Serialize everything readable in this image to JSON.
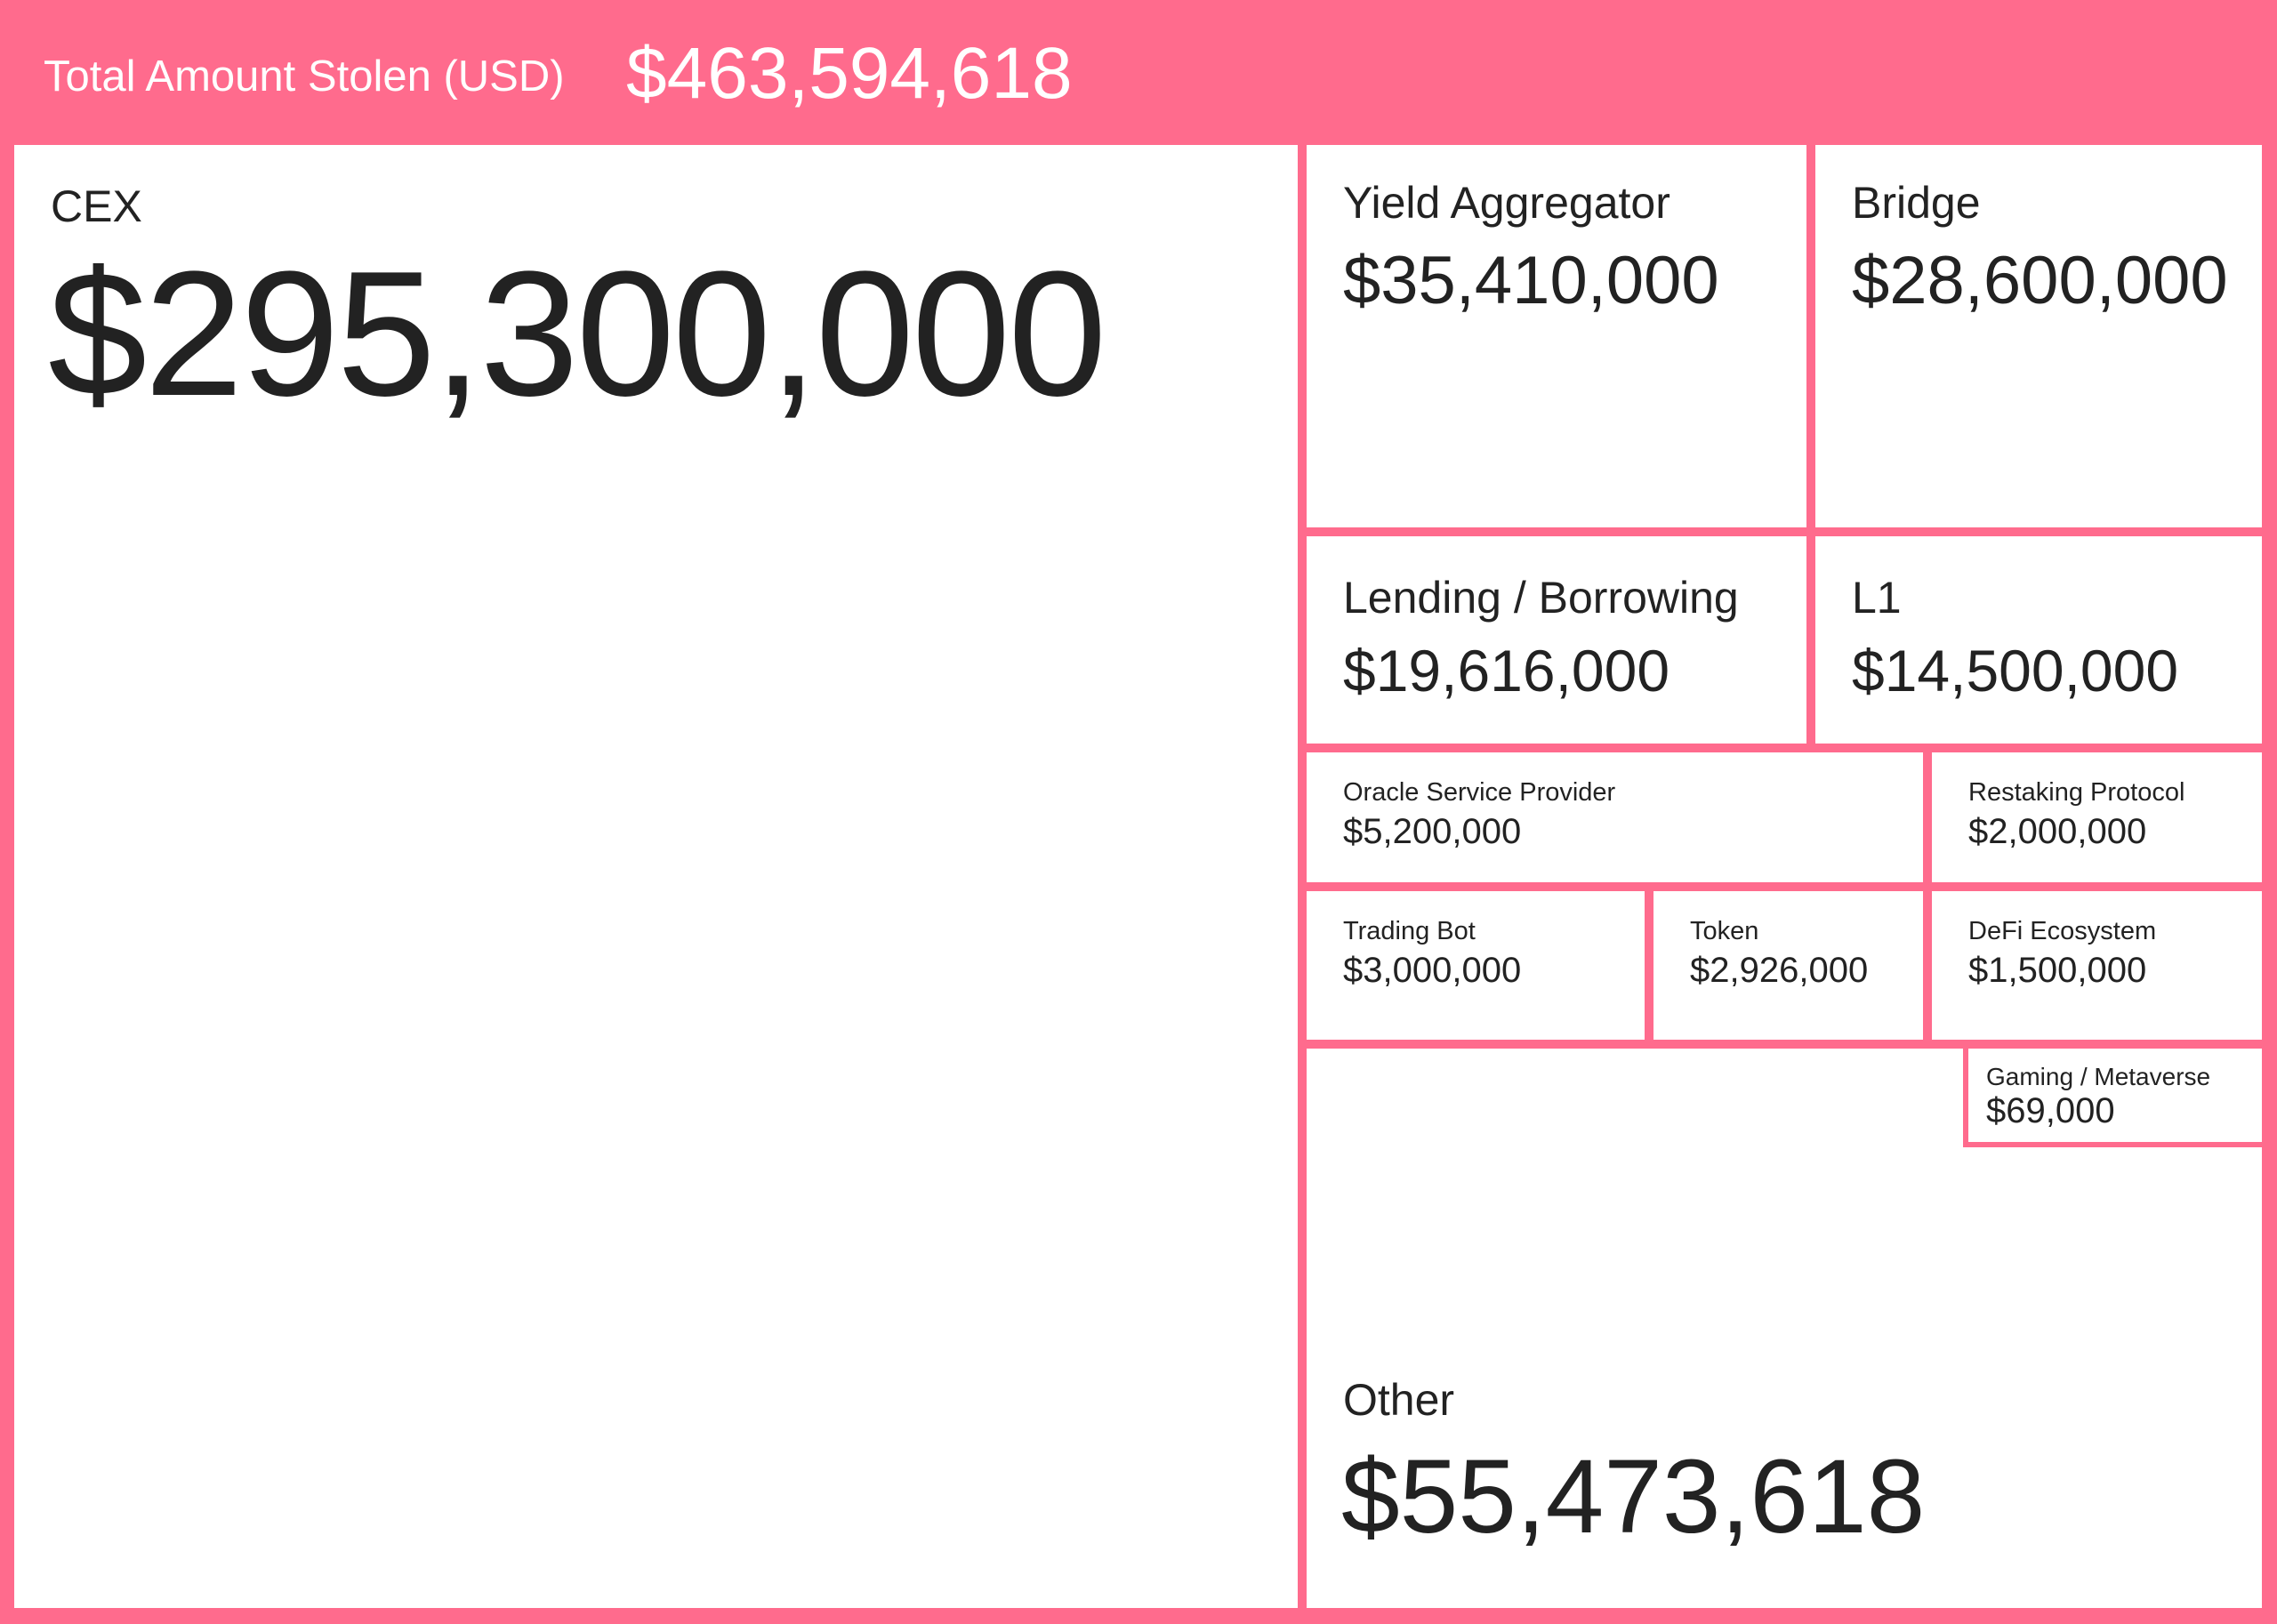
{
  "header": {
    "label": "Total Amount Stolen (USD)",
    "total": "$463,594,618"
  },
  "colors": {
    "accent": "#FF6B8D",
    "tile": "#FFFFFF",
    "text": "#222222"
  },
  "chart_data": {
    "type": "treemap",
    "total": 463594618,
    "categories": [
      "CEX",
      "Yield Aggregator",
      "Bridge",
      "Lending / Borrowing",
      "L1",
      "Oracle Service Provider",
      "Restaking Protocol",
      "Trading Bot",
      "Token",
      "DeFi Ecosystem",
      "Gaming / Metaverse",
      "Other"
    ],
    "values": [
      295300000,
      35410000,
      28600000,
      19616000,
      14500000,
      5200000,
      2000000,
      3000000,
      2926000,
      1500000,
      69000,
      55473618
    ]
  },
  "tiles": {
    "cex": {
      "label": "CEX",
      "value": "$295,300,000"
    },
    "yield_aggregator": {
      "label": "Yield Aggregator",
      "value": "$35,410,000"
    },
    "bridge": {
      "label": "Bridge",
      "value": "$28,600,000"
    },
    "lending_borrowing": {
      "label": "Lending / Borrowing",
      "value": "$19,616,000"
    },
    "l1": {
      "label": "L1",
      "value": "$14,500,000"
    },
    "oracle_service_provider": {
      "label": "Oracle Service Provider",
      "value": "$5,200,000"
    },
    "restaking_protocol": {
      "label": "Restaking Protocol",
      "value": "$2,000,000"
    },
    "trading_bot": {
      "label": "Trading Bot",
      "value": "$3,000,000"
    },
    "token": {
      "label": "Token",
      "value": "$2,926,000"
    },
    "defi_ecosystem": {
      "label": "DeFi Ecosystem",
      "value": "$1,500,000"
    },
    "gaming_metaverse": {
      "label": "Gaming / Metaverse",
      "value": "$69,000"
    },
    "other": {
      "label": "Other",
      "value": "$55,473,618"
    }
  }
}
